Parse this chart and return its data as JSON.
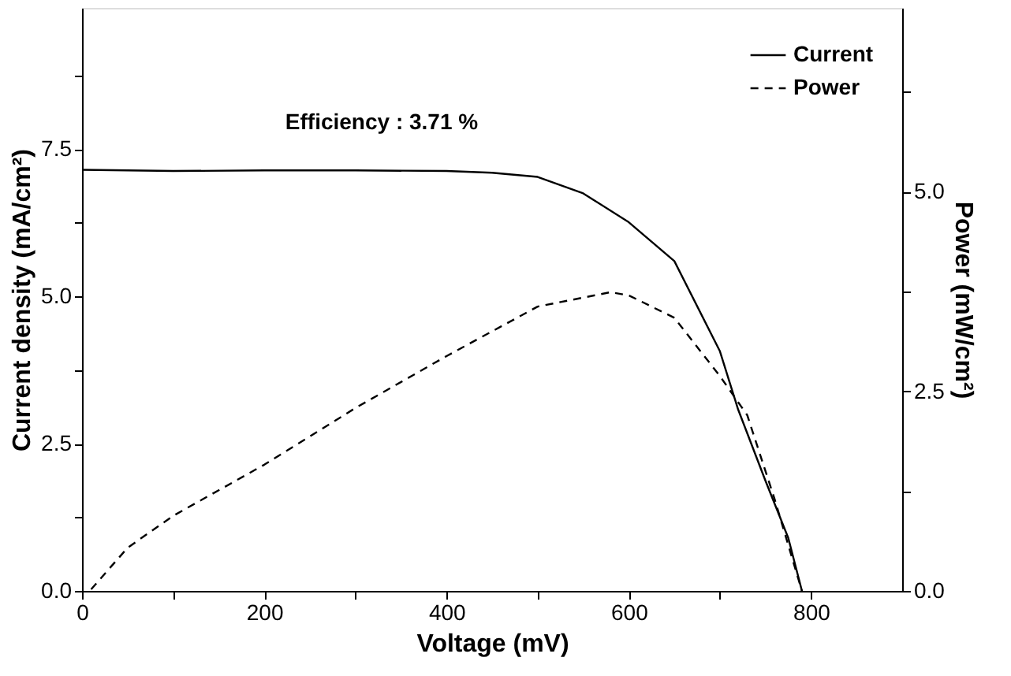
{
  "chart_data": {
    "type": "line",
    "xlabel": "Voltage (mV)",
    "ylabel": "Current density (mA/cm²)",
    "y2label": "Power (mW/cm²)",
    "annotations": [
      "Efficiency : 3.71 %"
    ],
    "series": [
      {
        "name": "Current",
        "color": "#000000",
        "line_style": "solid",
        "x": [
          0,
          100,
          200,
          300,
          400,
          450,
          500,
          550,
          600,
          650,
          700,
          720,
          750,
          775,
          790
        ],
        "values": [
          7.15,
          7.13,
          7.14,
          7.14,
          7.13,
          7.1,
          7.03,
          6.75,
          6.26,
          5.6,
          4.07,
          3.08,
          1.87,
          0.9,
          0
        ]
      },
      {
        "name": "Power",
        "color": "#000000",
        "line_style": "dashed",
        "axis": "y2",
        "x": [
          10,
          50,
          100,
          200,
          300,
          400,
          500,
          580,
          600,
          650,
          700,
          730,
          760,
          790
        ],
        "values": [
          0.02,
          0.54,
          0.94,
          1.58,
          2.29,
          2.94,
          3.56,
          3.74,
          3.7,
          3.42,
          2.69,
          2.2,
          1.15,
          0
        ]
      }
    ],
    "xlim": [
      0,
      900
    ],
    "xticks": [
      0,
      {
        "value": 100,
        "label": null
      },
      200,
      {
        "value": 300,
        "label": null
      },
      400,
      {
        "value": 500,
        "label": null
      },
      600,
      {
        "value": 700,
        "label": null
      },
      800
    ],
    "ylim": [
      0,
      9.9
    ],
    "yticks": [
      {
        "value": 0,
        "label": "0.0"
      },
      {
        "value": 1.25,
        "label": null
      },
      2.5,
      {
        "value": 3.75,
        "label": null
      },
      {
        "value": 5,
        "label": "5.0"
      },
      {
        "value": 6.25,
        "label": null
      },
      7.5,
      {
        "value": 8.75,
        "label": null
      }
    ],
    "y2lim": [
      0,
      7.3
    ],
    "y2ticks": [
      {
        "value": 0,
        "label": "0.0"
      },
      {
        "value": 1.25,
        "label": null
      },
      2.5,
      {
        "value": 3.75,
        "label": null
      },
      {
        "value": 5,
        "label": "5.0"
      },
      {
        "value": 6.25,
        "label": null
      }
    ],
    "legend": "top right",
    "grid": false
  }
}
